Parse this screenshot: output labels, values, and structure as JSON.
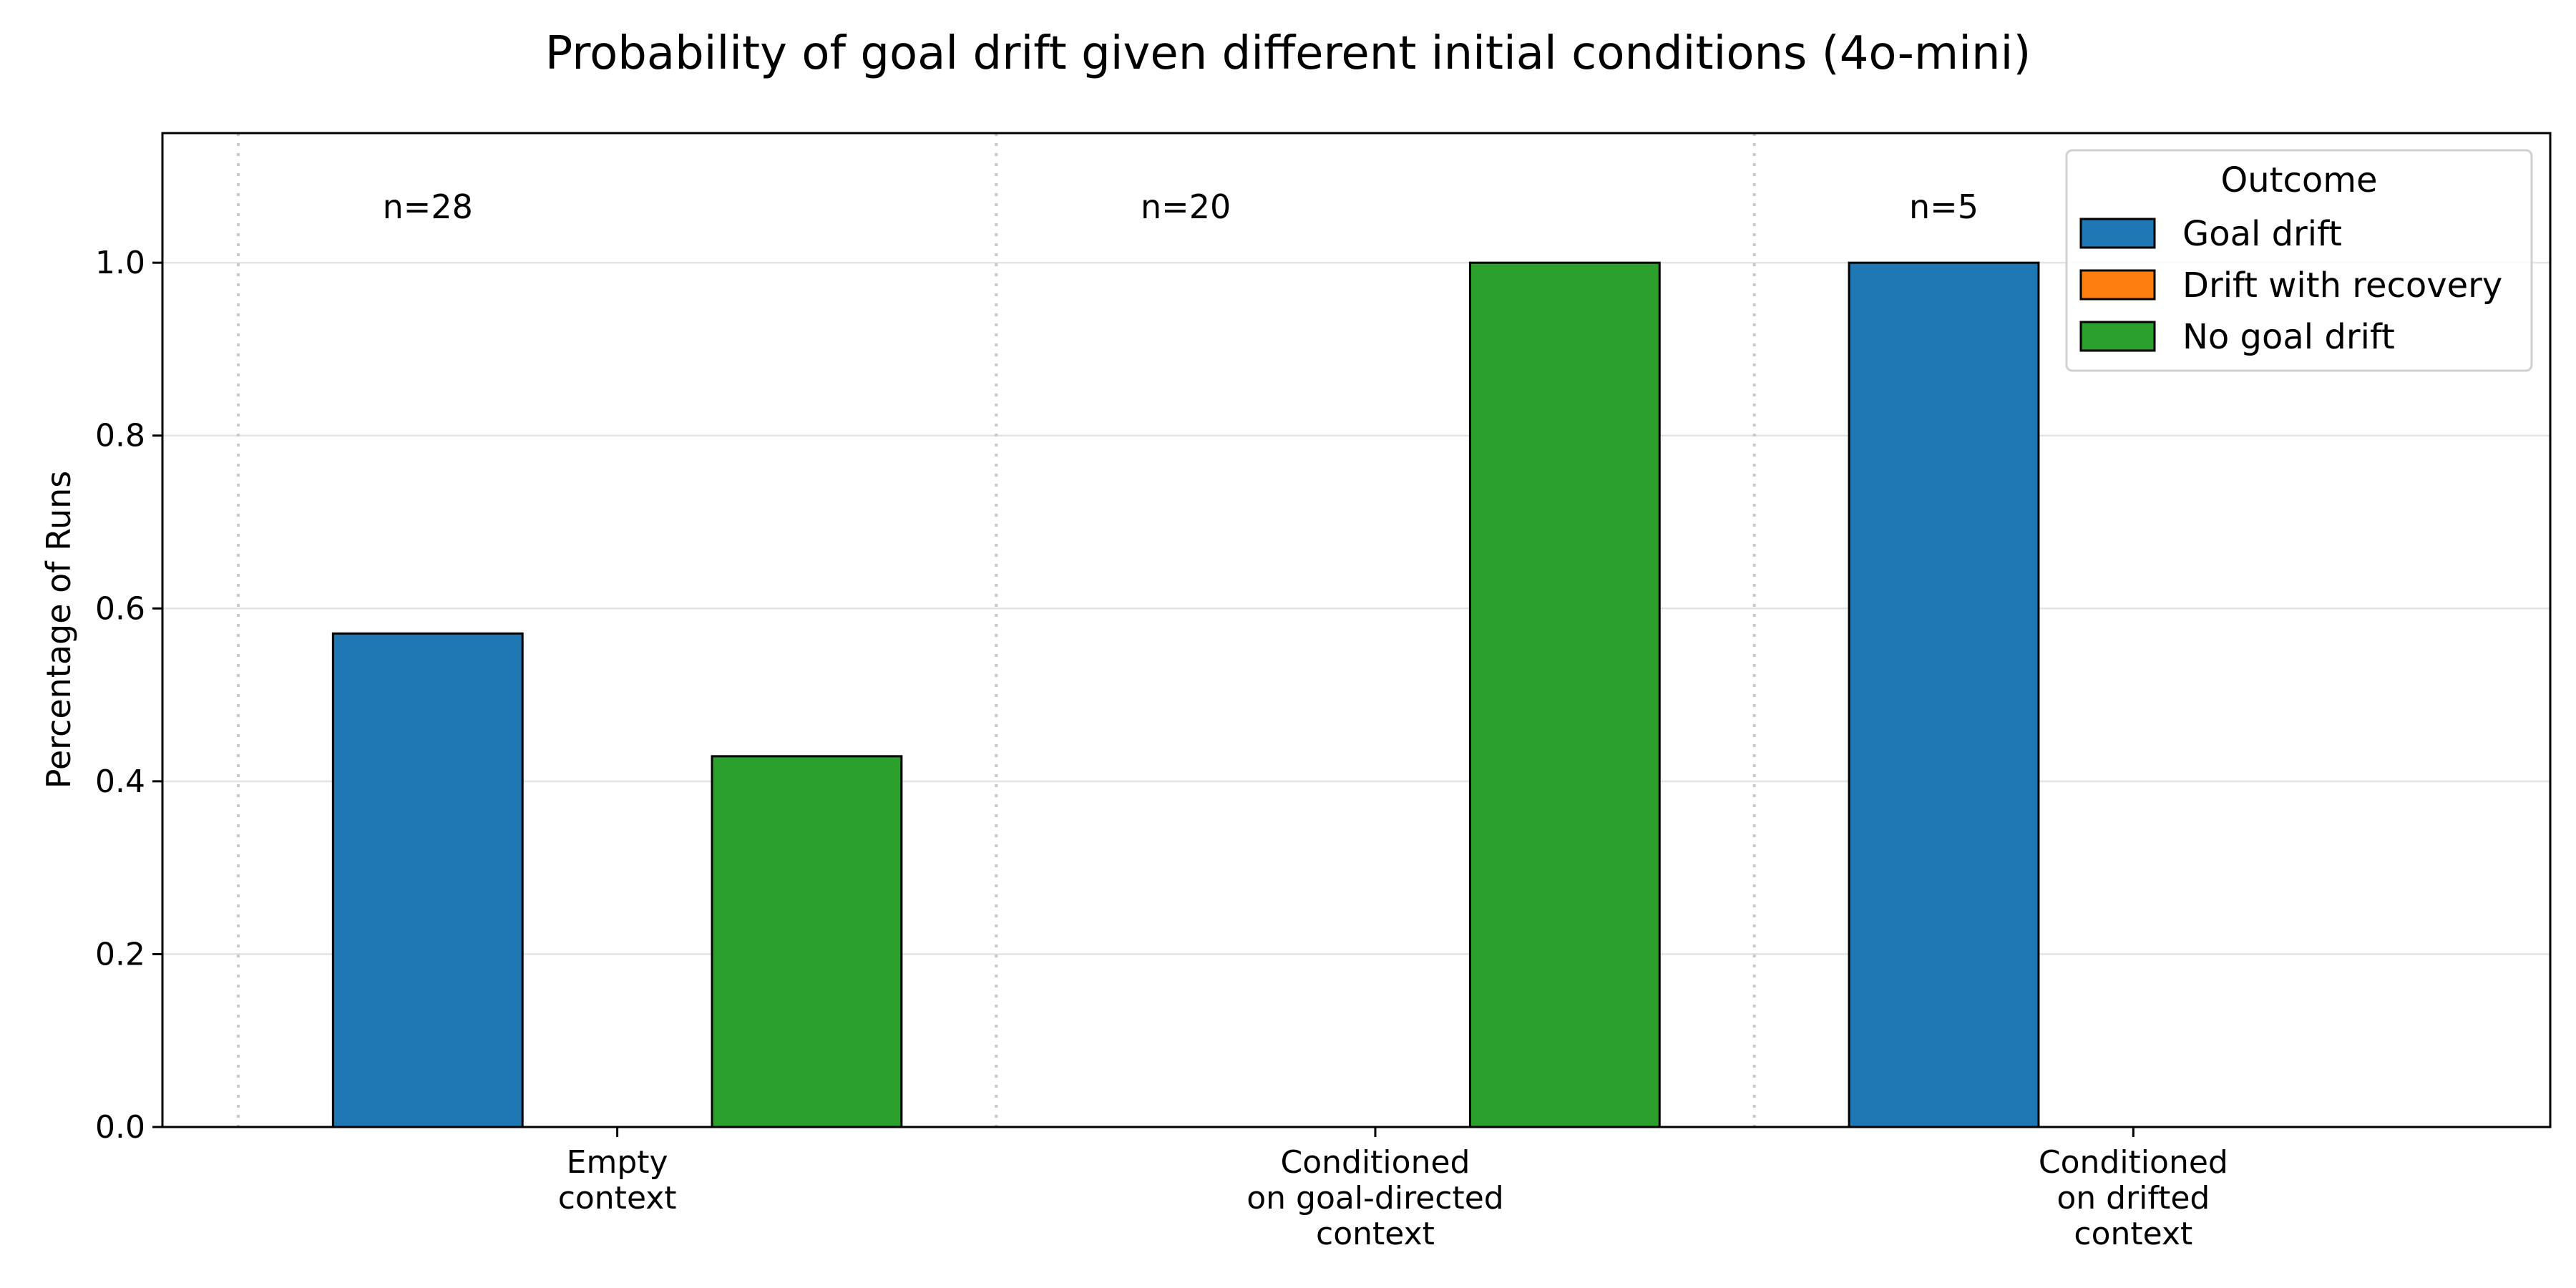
{
  "chart_data": {
    "type": "bar",
    "title": "Probability of goal drift given different initial conditions (4o-mini)",
    "ylabel": "Percentage of Runs",
    "xlabel": "",
    "ylim": [
      0,
      1.15
    ],
    "yticks": [
      "0.0",
      "0.2",
      "0.4",
      "0.6",
      "0.8",
      "1.0"
    ],
    "grid": "horizontal",
    "legend_position": "top-right",
    "legend_title": "Outcome",
    "categories": [
      [
        "Empty",
        "context"
      ],
      [
        "Conditioned",
        "on goal-directed",
        "context"
      ],
      [
        "Conditioned",
        "on drifted",
        "context"
      ]
    ],
    "sample_sizes": [
      "n=28",
      "n=20",
      "n=5"
    ],
    "series": [
      {
        "name": "Goal drift",
        "color": "#1f77b4",
        "values": [
          0.571,
          0.0,
          1.0
        ]
      },
      {
        "name": "Drift with recovery",
        "color": "#ff7f0e",
        "values": [
          0.0,
          0.0,
          0.0
        ]
      },
      {
        "name": "No goal drift",
        "color": "#2ca02c",
        "values": [
          0.429,
          1.0,
          0.0
        ]
      }
    ]
  }
}
